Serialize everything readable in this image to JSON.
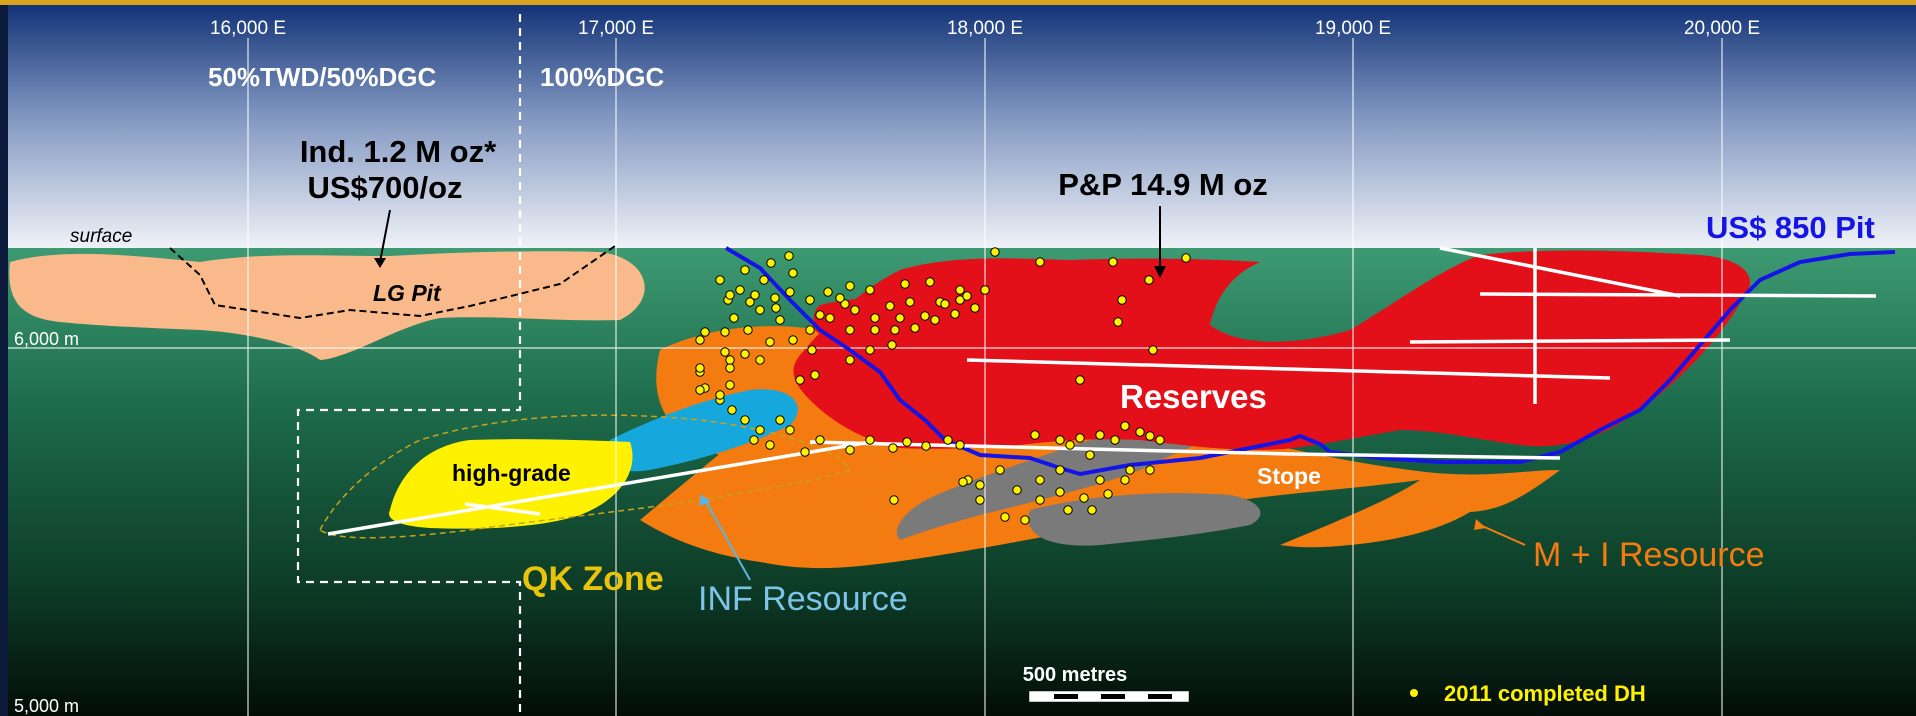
{
  "eastings": [
    "16,000 E",
    "17,000 E",
    "18,000 E",
    "19,000 E",
    "20,000 E"
  ],
  "elevations": [
    "6,000 m",
    "5,000 m"
  ],
  "ownership": {
    "west": "50%TWD/50%DGC",
    "east": "100%DGC"
  },
  "callouts": {
    "indicated_line1": "Ind. 1.2 M oz*",
    "indicated_line2": "US$700/oz",
    "pp": "P&P 14.9 M oz",
    "pit": "US$ 850 Pit"
  },
  "labels": {
    "surface": "surface",
    "lg_pit": "LG Pit",
    "reserves": "Reserves",
    "stope": "Stope",
    "high_grade": "high-grade",
    "qk_zone": "QK Zone",
    "inf_resource": "INF Resource",
    "mi_resource": "M + I Resource"
  },
  "scale_bar": "500 metres",
  "legend": {
    "drillholes": "2011 completed DH"
  },
  "colors": {
    "reserves": "#e3101a",
    "mi_resource": "#f47b0f",
    "inf_resource": "#16a8dc",
    "high_grade": "#fff200",
    "stope": "#7a7a7a",
    "lg_pit_fill": "#f9b98a",
    "pit_line": "#1414e6",
    "qk_label": "#e8c40c",
    "drillhole": "#fff200"
  }
}
